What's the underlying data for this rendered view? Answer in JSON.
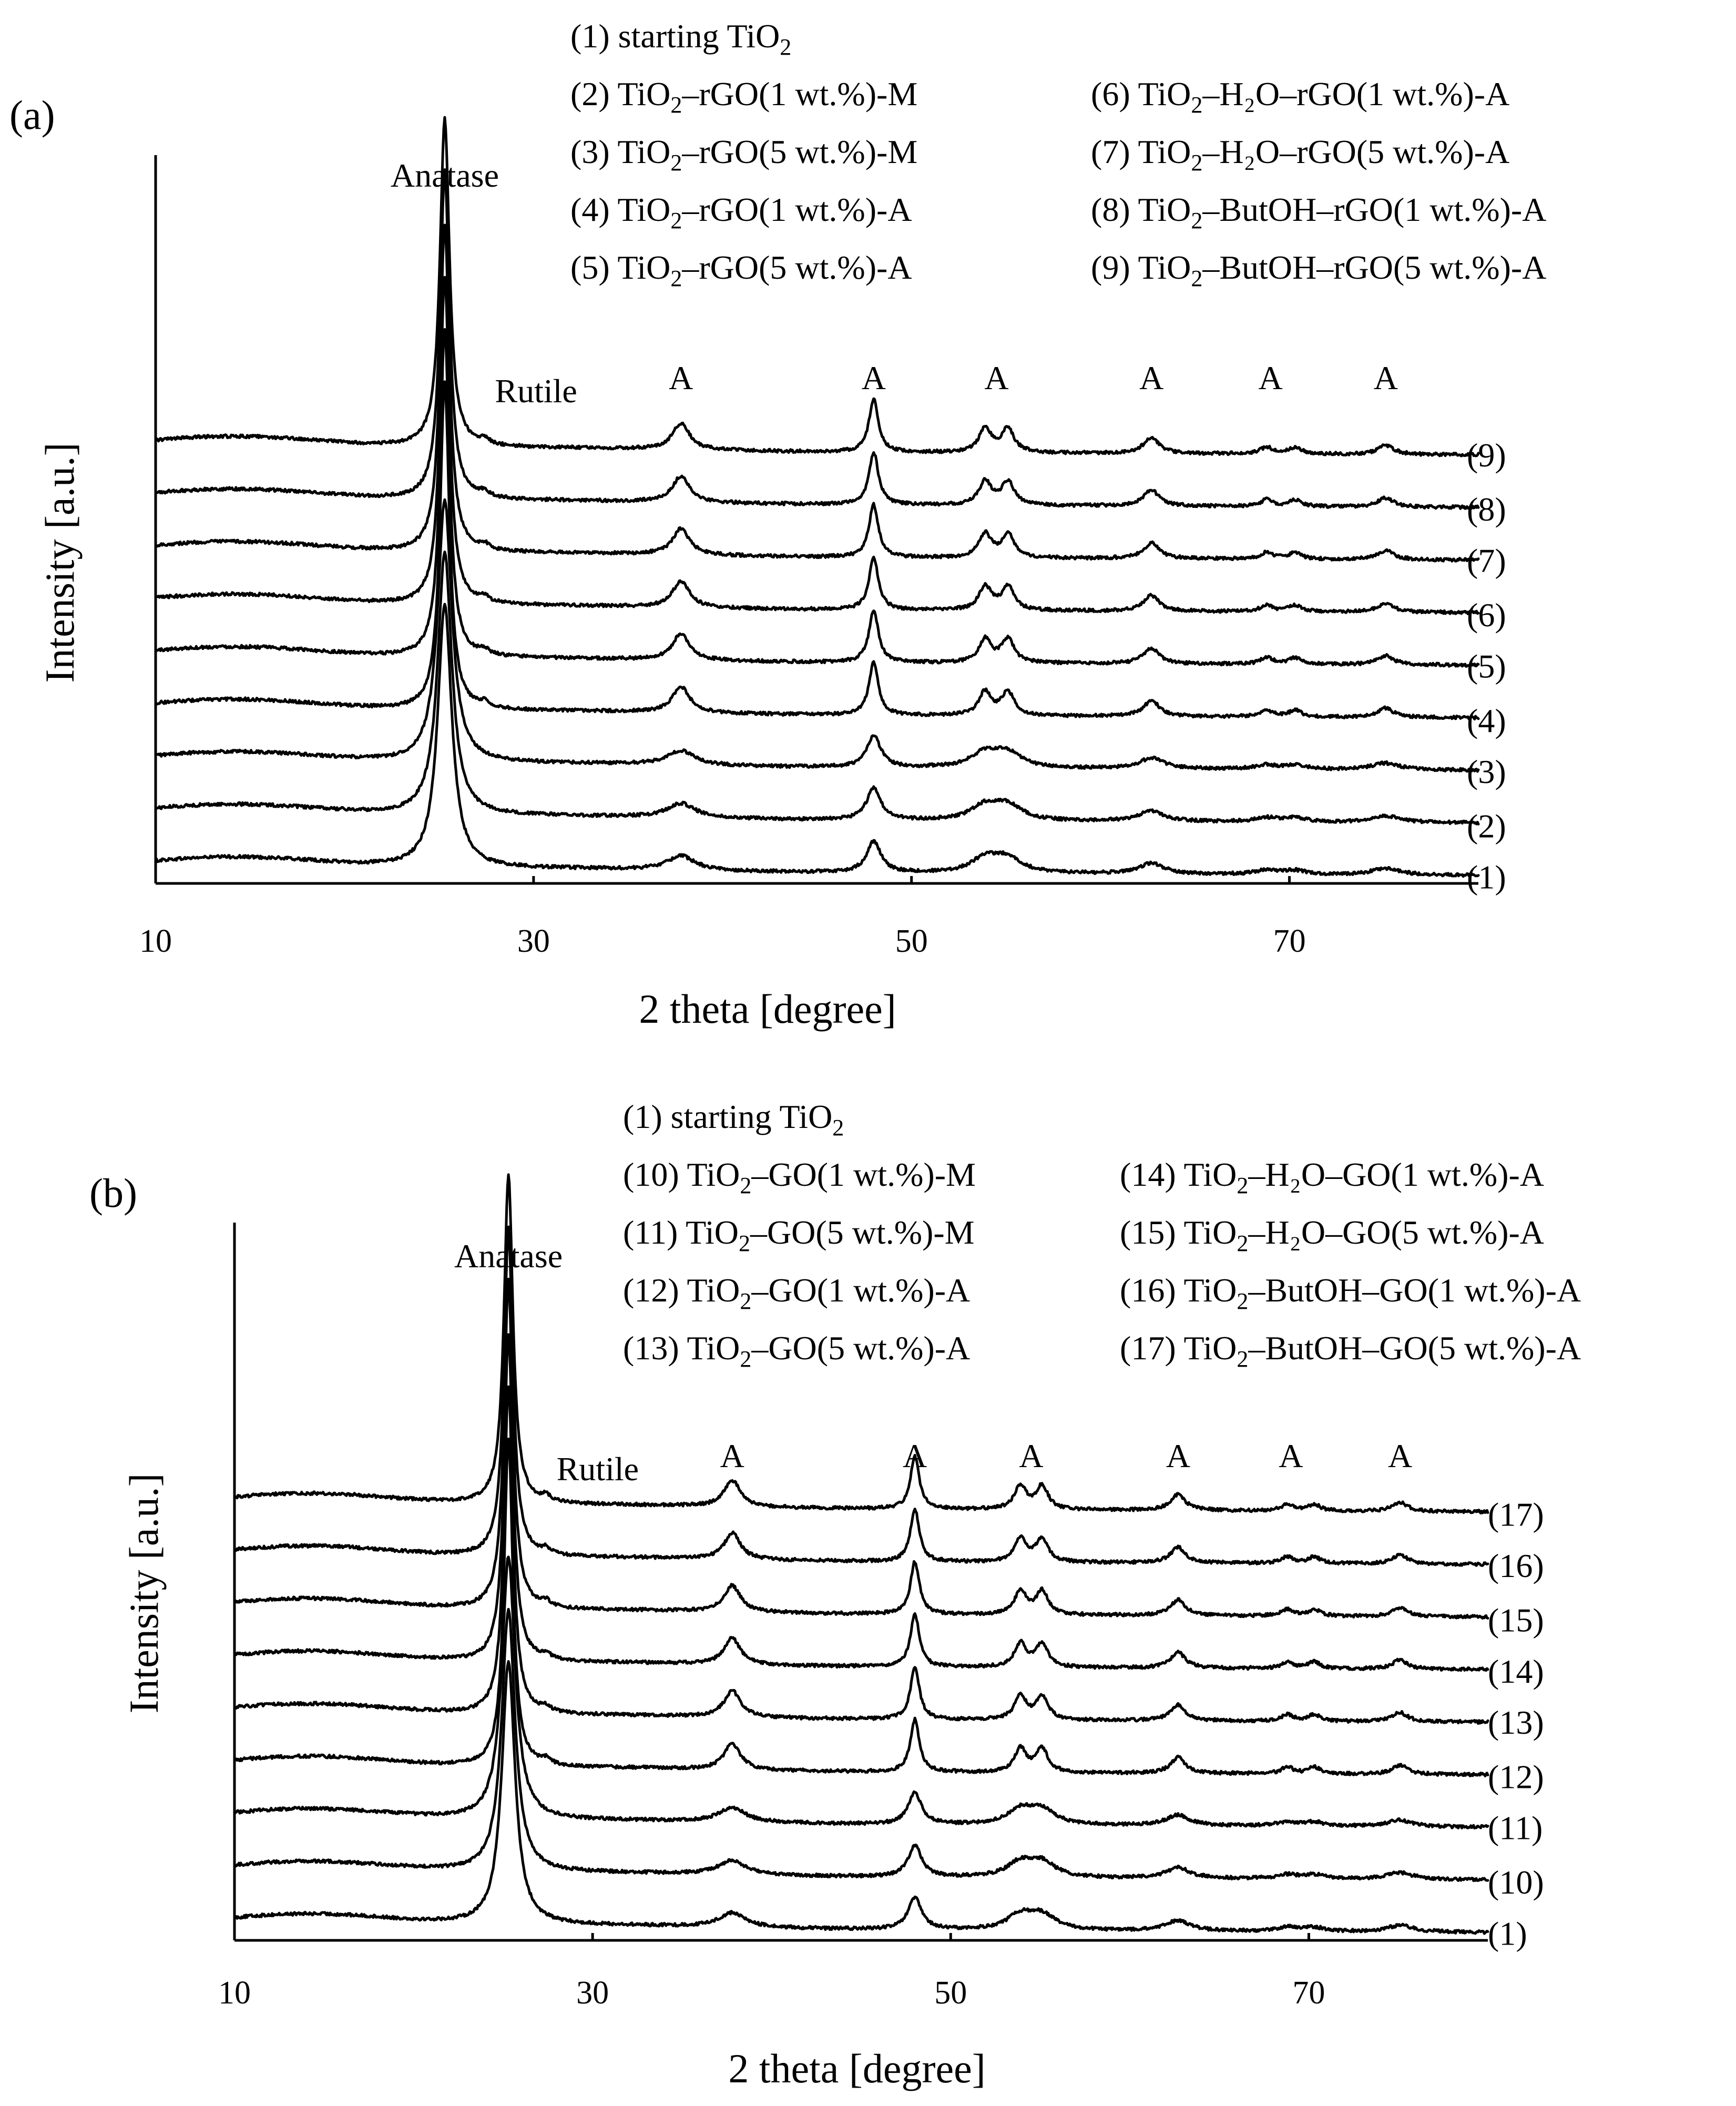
{
  "chart_data": [
    {
      "panel": "(a)",
      "type": "line",
      "xlabel": "2 theta [degree]",
      "ylabel": "Intensity [a.u.]",
      "xlim": [
        10,
        80
      ],
      "xticks": [
        10,
        30,
        50,
        70
      ],
      "legend": {
        "col1": [
          {
            "num": "(1)",
            "pre": "starting TiO",
            "sub": "2",
            "post": ""
          },
          {
            "num": "(2)",
            "pre": "TiO",
            "sub": "2",
            "post": "–rGO(1 wt.%)-M"
          },
          {
            "num": "(3)",
            "pre": "TiO",
            "sub": "2",
            "post": "–rGO(5 wt.%)-M"
          },
          {
            "num": "(4)",
            "pre": "TiO",
            "sub": "2",
            "post": "–rGO(1 wt.%)-A"
          },
          {
            "num": "(5)",
            "pre": "TiO",
            "sub": "2",
            "post": "–rGO(5 wt.%)-A"
          }
        ],
        "col2": [
          {
            "num": "(6)",
            "pre": "TiO",
            "sub": "2",
            "post": "–H₂O–rGO(1 wt.%)-A"
          },
          {
            "num": "(7)",
            "pre": "TiO",
            "sub": "2",
            "post": "–H₂O–rGO(5 wt.%)-A"
          },
          {
            "num": "(8)",
            "pre": "TiO",
            "sub": "2",
            "post": "–ButOH–rGO(1 wt.%)-A"
          },
          {
            "num": "(9)",
            "pre": "TiO",
            "sub": "2",
            "post": "–ButOH–rGO(5 wt.%)-A"
          }
        ]
      },
      "annotations": [
        {
          "text": "Anatase",
          "x": 25.3
        },
        {
          "text": "Rutile",
          "x": 27.4
        },
        {
          "text": "A",
          "x": 37.8
        },
        {
          "text": "A",
          "x": 48.0
        },
        {
          "text": "A",
          "x": 54.5
        },
        {
          "text": "A",
          "x": 62.7
        },
        {
          "text": "A",
          "x": 69.0
        },
        {
          "text": "A",
          "x": 75.1
        }
      ],
      "series": [
        {
          "name": "(1)",
          "type": "base"
        },
        {
          "name": "(2)",
          "type": "base"
        },
        {
          "name": "(3)",
          "type": "base"
        },
        {
          "name": "(4)",
          "type": "annealed"
        },
        {
          "name": "(5)",
          "type": "annealed"
        },
        {
          "name": "(6)",
          "type": "annealed"
        },
        {
          "name": "(7)",
          "type": "annealed"
        },
        {
          "name": "(8)",
          "type": "annealed"
        },
        {
          "name": "(9)",
          "type": "annealed"
        }
      ],
      "peaks": {
        "base": [
          {
            "x": 25.3,
            "h": 1.0,
            "w": 0.45
          },
          {
            "x": 37.8,
            "h": 0.055,
            "w": 0.9
          },
          {
            "x": 48.0,
            "h": 0.12,
            "w": 0.45
          },
          {
            "x": 53.9,
            "h": 0.055,
            "w": 0.9
          },
          {
            "x": 55.1,
            "h": 0.055,
            "w": 0.9
          },
          {
            "x": 62.7,
            "h": 0.04,
            "w": 0.8
          },
          {
            "x": 68.8,
            "h": 0.015,
            "w": 0.7
          },
          {
            "x": 70.3,
            "h": 0.015,
            "w": 0.7
          },
          {
            "x": 75.1,
            "h": 0.025,
            "w": 0.9
          }
        ],
        "annealed": [
          {
            "x": 25.3,
            "h": 1.25,
            "w": 0.3
          },
          {
            "x": 27.4,
            "h": 0.02,
            "w": 0.3
          },
          {
            "x": 37.8,
            "h": 0.1,
            "w": 0.55
          },
          {
            "x": 48.0,
            "h": 0.2,
            "w": 0.3
          },
          {
            "x": 53.9,
            "h": 0.09,
            "w": 0.4
          },
          {
            "x": 55.1,
            "h": 0.09,
            "w": 0.4
          },
          {
            "x": 62.7,
            "h": 0.06,
            "w": 0.5
          },
          {
            "x": 68.8,
            "h": 0.025,
            "w": 0.4
          },
          {
            "x": 70.3,
            "h": 0.025,
            "w": 0.4
          },
          {
            "x": 75.1,
            "h": 0.035,
            "w": 0.5
          }
        ]
      }
    },
    {
      "panel": "(b)",
      "type": "line",
      "xlabel": "2 theta [degree]",
      "ylabel": "Intensity [a.u.]",
      "xlim": [
        10,
        80
      ],
      "xticks": [
        10,
        30,
        50,
        70
      ],
      "legend": {
        "col1": [
          {
            "num": "(1)",
            "pre": "starting TiO",
            "sub": "2",
            "post": ""
          },
          {
            "num": "(10)",
            "pre": "TiO",
            "sub": "2",
            "post": "–GO(1 wt.%)-M"
          },
          {
            "num": "(11)",
            "pre": "TiO",
            "sub": "2",
            "post": "–GO(5 wt.%)-M"
          },
          {
            "num": "(12)",
            "pre": "TiO",
            "sub": "2",
            "post": "–GO(1 wt.%)-A"
          },
          {
            "num": "(13)",
            "pre": "TiO",
            "sub": "2",
            "post": "–GO(5 wt.%)-A"
          }
        ],
        "col2": [
          {
            "num": "(14)",
            "pre": "TiO",
            "sub": "2",
            "post": "–H₂O–GO(1 wt.%)-A"
          },
          {
            "num": "(15)",
            "pre": "TiO",
            "sub": "2",
            "post": "–H₂O–GO(5 wt.%)-A"
          },
          {
            "num": "(16)",
            "pre": "TiO",
            "sub": "2",
            "post": "–ButOH–GO(1 wt.%)-A"
          },
          {
            "num": "(17)",
            "pre": "TiO",
            "sub": "2",
            "post": "–ButOH–GO(5 wt.%)-A"
          }
        ]
      },
      "annotations": [
        {
          "text": "Anatase",
          "x": 25.3
        },
        {
          "text": "Rutile",
          "x": 27.4
        },
        {
          "text": "A",
          "x": 37.8
        },
        {
          "text": "A",
          "x": 48.0
        },
        {
          "text": "A",
          "x": 54.5
        },
        {
          "text": "A",
          "x": 62.7
        },
        {
          "text": "A",
          "x": 69.0
        },
        {
          "text": "A",
          "x": 75.1
        }
      ],
      "series": [
        {
          "name": "(1)",
          "type": "base"
        },
        {
          "name": "(10)",
          "type": "base"
        },
        {
          "name": "(11)",
          "type": "base"
        },
        {
          "name": "(12)",
          "type": "annealed"
        },
        {
          "name": "(13)",
          "type": "annealed"
        },
        {
          "name": "(14)",
          "type": "annealed"
        },
        {
          "name": "(15)",
          "type": "annealed"
        },
        {
          "name": "(16)",
          "type": "annealed"
        },
        {
          "name": "(17)",
          "type": "annealed"
        }
      ],
      "peaks": {
        "base": [
          {
            "x": 25.3,
            "h": 1.0,
            "w": 0.45
          },
          {
            "x": 37.8,
            "h": 0.055,
            "w": 0.9
          },
          {
            "x": 48.0,
            "h": 0.12,
            "w": 0.45
          },
          {
            "x": 53.9,
            "h": 0.055,
            "w": 0.9
          },
          {
            "x": 55.1,
            "h": 0.055,
            "w": 0.9
          },
          {
            "x": 62.7,
            "h": 0.04,
            "w": 0.8
          },
          {
            "x": 68.8,
            "h": 0.015,
            "w": 0.7
          },
          {
            "x": 70.3,
            "h": 0.015,
            "w": 0.7
          },
          {
            "x": 75.1,
            "h": 0.025,
            "w": 0.9
          }
        ],
        "annealed": [
          {
            "x": 25.3,
            "h": 1.25,
            "w": 0.3
          },
          {
            "x": 27.4,
            "h": 0.02,
            "w": 0.3
          },
          {
            "x": 37.8,
            "h": 0.1,
            "w": 0.55
          },
          {
            "x": 48.0,
            "h": 0.2,
            "w": 0.3
          },
          {
            "x": 53.9,
            "h": 0.09,
            "w": 0.4
          },
          {
            "x": 55.1,
            "h": 0.09,
            "w": 0.4
          },
          {
            "x": 62.7,
            "h": 0.06,
            "w": 0.5
          },
          {
            "x": 68.8,
            "h": 0.025,
            "w": 0.4
          },
          {
            "x": 70.3,
            "h": 0.025,
            "w": 0.4
          },
          {
            "x": 75.1,
            "h": 0.035,
            "w": 0.5
          }
        ]
      }
    }
  ]
}
